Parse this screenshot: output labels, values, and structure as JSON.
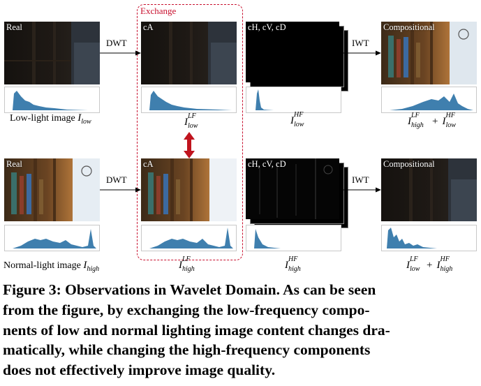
{
  "figure": {
    "exchange_label": "Exchange",
    "top_row": {
      "real_tag": "Real",
      "ca_tag": "cA",
      "high_tag": "cH, cV, cD",
      "comp_tag": "Compositional",
      "dwt": "DWT",
      "iwt": "IWT",
      "caption_text": "Low-light image ",
      "caption_math": "I",
      "caption_sub": "low",
      "ca_math_sup": "LF",
      "ca_math_sub": "low",
      "high_math_sup": "HF",
      "high_math_sub": "low",
      "comp_a_sup": "LF",
      "comp_a_sub": "high",
      "comp_plus": "+",
      "comp_b_sup": "HF",
      "comp_b_sub": "low"
    },
    "bottom_row": {
      "real_tag": "Real",
      "ca_tag": "cA",
      "high_tag": "cH, cV, cD",
      "comp_tag": "Compositional",
      "dwt": "DWT",
      "iwt": "IWT",
      "caption_text": "Normal-light image ",
      "caption_math": "I",
      "caption_sub": "high",
      "ca_math_sup": "LF",
      "ca_math_sub": "high",
      "high_math_sup": "HF",
      "high_math_sub": "high",
      "comp_a_sup": "LF",
      "comp_a_sub": "low",
      "comp_plus": "+",
      "comp_b_sup": "HF",
      "comp_b_sub": "high"
    },
    "colors": {
      "exchange": "#c8102e",
      "hist_bar": "#3f7fae",
      "arrow": "#c0141e"
    }
  },
  "caption": {
    "lines": [
      "Figure 3: Observations in Wavelet Domain. As can be seen",
      "from the figure, by exchanging the low-frequency compo-",
      "nents of low and normal lighting image content changes dra-",
      "matically, while changing the high-frequency components",
      "does not effectively improve image quality."
    ]
  }
}
